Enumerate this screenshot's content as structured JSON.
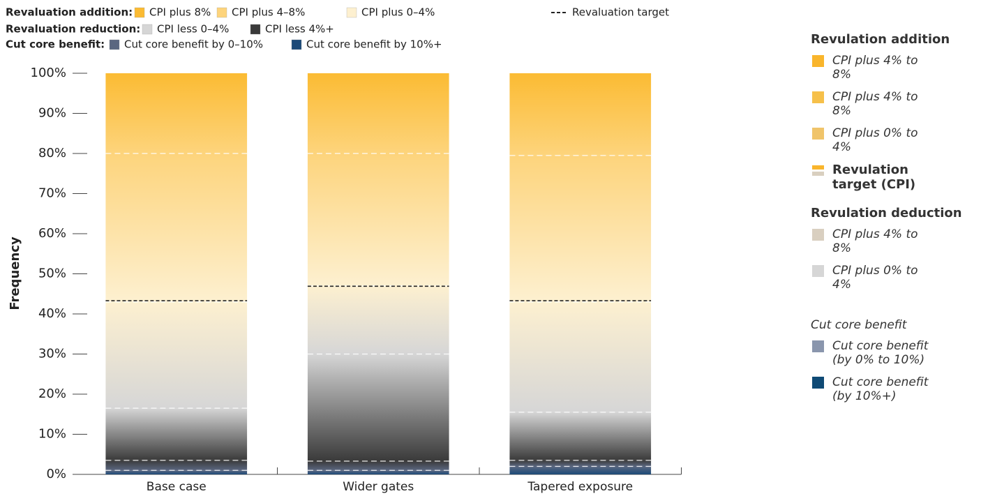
{
  "chart_data": {
    "type": "bar",
    "stacked": true,
    "y_label": "Frequency",
    "categories": [
      "Base case",
      "Wider gates",
      "Tapered exposure"
    ],
    "legend_titles": [
      "Revaluation addition:",
      "Revaluation reduction:",
      "Cut core benefit:"
    ],
    "series": [
      {
        "name": "Cut core benefit by 10%+",
        "color": "#1c4a78",
        "values": [
          1,
          1,
          2
        ]
      },
      {
        "name": "Cut core benefit by 0–10%",
        "color": "#5b6780",
        "values": [
          2.5,
          2.3,
          1.5
        ]
      },
      {
        "name": "CPI less 4%+",
        "color": "#3a3a3a",
        "values": [
          13,
          26.7,
          12
        ]
      },
      {
        "name": "CPI less 0–4%",
        "color": "#d6d6d6",
        "values": [
          26.5,
          17,
          27.5
        ]
      },
      {
        "name": "CPI plus 0–4%",
        "color": "#fdf0d0",
        "values": [
          37,
          33,
          36.5
        ]
      },
      {
        "name": "CPI plus 4–8%",
        "color": "#fdd47c",
        "values": [
          20,
          20,
          20.5
        ]
      },
      {
        "name": "CPI plus 8%",
        "color": "#fbbb33",
        "values": [
          0,
          0,
          0
        ]
      }
    ],
    "target_series": {
      "name": "Revaluation target",
      "color": "#222222",
      "values": [
        43.3,
        46.9,
        43.3
      ]
    },
    "ylim": [
      0,
      100
    ],
    "yticks": [
      {
        "value": 0,
        "label": "0%"
      },
      {
        "value": 10,
        "label": "10%"
      },
      {
        "value": 20,
        "label": "20%"
      },
      {
        "value": 30,
        "label": "30%"
      },
      {
        "value": 40,
        "label": "40%"
      },
      {
        "value": 50,
        "label": "50%"
      },
      {
        "value": 60,
        "label": "60%"
      },
      {
        "value": 70,
        "label": "70%"
      },
      {
        "value": 80,
        "label": "80%"
      },
      {
        "value": 90,
        "label": "90%"
      },
      {
        "value": 100,
        "label": "100%"
      }
    ]
  },
  "side_legend": {
    "sections": [
      {
        "title": "Revulation addition",
        "items": [
          {
            "label": "CPI plus 4% to 8%",
            "color": "#f9b52c"
          },
          {
            "label": "CPI plus 4% to 8%",
            "color": "#f6c04a"
          },
          {
            "label": "CPI plus 0% to 4%",
            "color": "#f0c46a"
          }
        ]
      },
      {
        "title": "Revulation target (CPI)",
        "colors": [
          "#f9b52c",
          "#d9cfbf"
        ]
      },
      {
        "title": "Revulation deduction",
        "items": [
          {
            "label": "CPI plus 4% to 8%",
            "color": "#d9cfc0"
          },
          {
            "label": "CPI plus 0% to 4%",
            "color": "#d6d6d6"
          }
        ]
      },
      {
        "title": "Cut core benefit",
        "items": [
          {
            "label": "Cut core benefit (by 0% to 10%)",
            "color": "#8a96ad"
          },
          {
            "label": "Cut core benefit (by 10%+)",
            "color": "#0f4a75"
          }
        ]
      }
    ]
  }
}
